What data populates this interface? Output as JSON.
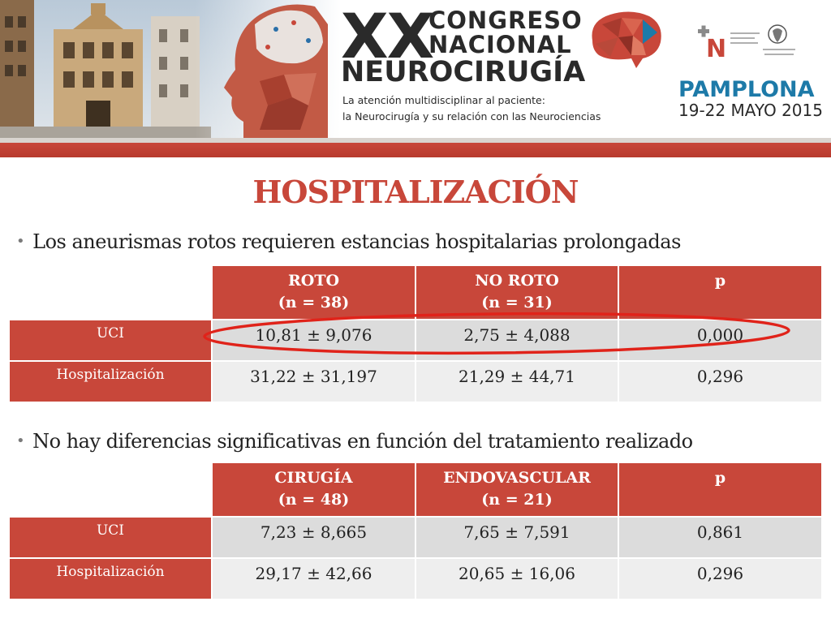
{
  "banner": {
    "logo_xx": "XX",
    "logo_congreso": "CONGRESO",
    "logo_nacional": "NACIONAL",
    "logo_neurocirugia": "NEUROCIRUGÍA",
    "tagline_line1": "La atención multidisciplinar al paciente:",
    "tagline_line2": "la Neurocirugía y su relación con las Neurociencias",
    "city": "PAMPLONA",
    "dates": "19-22 MAYO 2015"
  },
  "title": "HOSPITALIZACIÓN",
  "bullets": [
    "Los aneurismas rotos requieren estancias hospitalarias prolongadas",
    "No hay diferencias significativas en función del tratamiento realizado"
  ],
  "tables": [
    {
      "headers": [
        {
          "line1": "ROTO",
          "line2": "(n = 38)"
        },
        {
          "line1": "NO ROTO",
          "line2": "(n = 31)"
        },
        {
          "line1": "p",
          "line2": ""
        }
      ],
      "rows": [
        {
          "label": "UCI",
          "values": [
            "10,81 ± 9,076",
            "2,75 ± 4,088",
            "0,000"
          ]
        },
        {
          "label": "Hospitalización",
          "values": [
            "31,22 ± 31,197",
            "21,29 ± 44,71",
            "0,296"
          ]
        }
      ]
    },
    {
      "headers": [
        {
          "line1": "CIRUGÍA",
          "line2": "(n = 48)"
        },
        {
          "line1": "ENDOVASCULAR",
          "line2": "(n = 21)"
        },
        {
          "line1": "p",
          "line2": ""
        }
      ],
      "rows": [
        {
          "label": "UCI",
          "values": [
            "7,23 ± 8,665",
            "7,65 ± 7,591",
            "0,861"
          ]
        },
        {
          "label": "Hospitalización",
          "values": [
            "29,17 ± 42,66",
            "20,65 ± 16,06",
            "0,296"
          ]
        }
      ]
    }
  ],
  "colors": {
    "accent_red": "#c8473a",
    "city_blue": "#1d7aa8",
    "row_gray_dark": "#dcdcdc",
    "row_gray_light": "#eeeeee"
  }
}
